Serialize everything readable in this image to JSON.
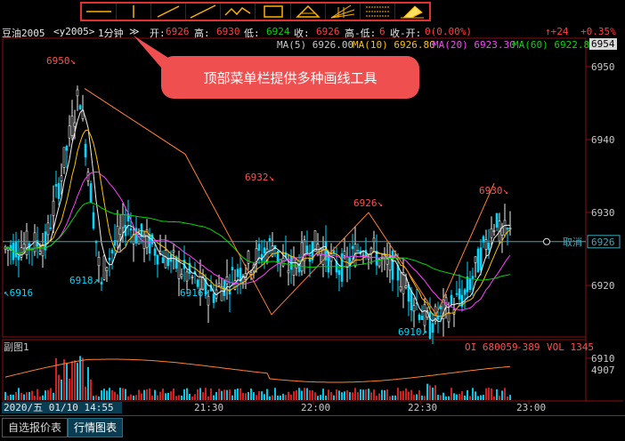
{
  "toolbar": {
    "tools": [
      {
        "name": "horizontal-line-tool-icon"
      },
      {
        "name": "vertical-line-tool-icon"
      },
      {
        "name": "segment-tool-icon"
      },
      {
        "name": "ray-tool-icon"
      },
      {
        "name": "zigzag-tool-icon"
      },
      {
        "name": "rectangle-tool-icon"
      },
      {
        "name": "triangle-tool-icon"
      },
      {
        "name": "fan-lines-tool-icon"
      },
      {
        "name": "parallel-lines-tool-icon"
      },
      {
        "name": "eraser-tool-icon"
      }
    ]
  },
  "header": {
    "symbol": "豆油2005",
    "contract": "<y2005>",
    "period": "1分钟",
    "dropdown": "≫",
    "open_label": "开:",
    "open": "6926",
    "high_label": "高:",
    "high": "6930",
    "low_label": "低:",
    "low": "6924",
    "close_label": "收:",
    "close": "6926",
    "hl_label": "高-低:",
    "hl": "6",
    "co_label": "收-开:",
    "co": "0(0.00%)",
    "change": "↑+24",
    "change_pct": "+0.35%"
  },
  "ma": {
    "ma5": "MA(5) 6926.00",
    "ma10": "MA(10) 6926.80",
    "ma20": "MA(20) 6923.30",
    "ma60": "MA(60) 6922.80",
    "current_box": "6954"
  },
  "annotations": {
    "a6950": "6950↘",
    "a6918": "6918↗",
    "a6916_left": "↖6916",
    "a6916": "6916↗",
    "a6932": "6932↘",
    "a6926": "6926↘",
    "a6930": "6930↘",
    "a6910": "6910↗",
    "cancel": "取消",
    "price_line": "6926"
  },
  "y_axis": [
    "6950",
    "6940",
    "6930",
    "6920",
    "6910"
  ],
  "callout": "顶部菜单栏提供多种画线工具",
  "sub_chart": {
    "title": "副图1",
    "oi": "OI 680059",
    "oi_change": "-389",
    "vol": "VOL 1345",
    "axis_label": "4907"
  },
  "x_axis": {
    "cursor_label": "2020/五 01/10 14:55",
    "ticks": [
      "21:30",
      "22:00",
      "22:30",
      "23:00"
    ]
  },
  "tabs": [
    {
      "label": "自选报价表",
      "active": false
    },
    {
      "label": "行情图表",
      "active": true
    }
  ],
  "colors": {
    "up": "#ff4040",
    "down": "#00d8ff",
    "ma5": "#f0f0f0",
    "ma10": "#ffc000",
    "ma20": "#ff40ff",
    "ma60": "#00d800",
    "zigzag": "#ff8030",
    "callout": "#f04f4f"
  }
}
